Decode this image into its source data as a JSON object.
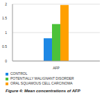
{
  "chart_data": {
    "type": "bar",
    "title": "Figure 4: Mean concentrations of AFP",
    "categories": [
      "AFP"
    ],
    "series": [
      {
        "name": "CONTROL",
        "color": "#1e88e5",
        "values": [
          0.8
        ]
      },
      {
        "name": "POTENTIALLY MALIGNANT DISORDER",
        "color": "#4cc23a",
        "values": [
          1.3
        ]
      },
      {
        "name": "ORAL SQUAMOUS CELL CARCINOMA",
        "color": "#ffa000",
        "values": [
          1.97
        ]
      }
    ],
    "ylim": [
      0,
      2
    ],
    "yticks": [
      0,
      0.5,
      1,
      1.5,
      2
    ],
    "grid": true
  }
}
